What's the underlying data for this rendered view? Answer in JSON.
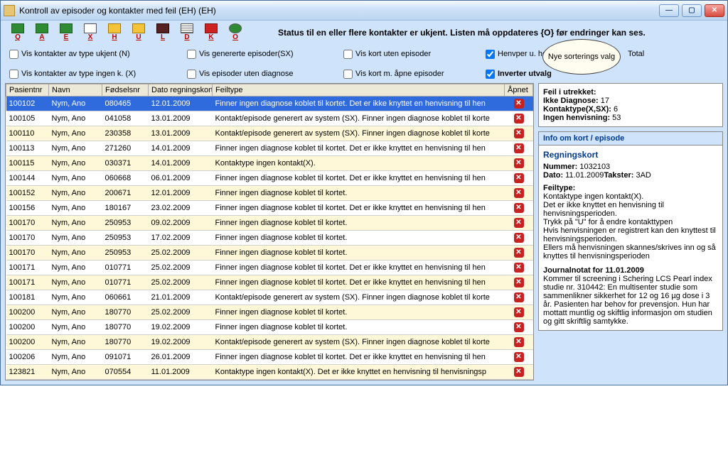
{
  "window": {
    "title": "Kontroll av episoder og kontakter med feil (EH) (EH)"
  },
  "toolbar": {
    "buttons": [
      {
        "icon": "green",
        "letter": "Q",
        "name": "exit"
      },
      {
        "icon": "green",
        "letter": "A",
        "name": "a"
      },
      {
        "icon": "green",
        "letter": "E",
        "name": "e"
      },
      {
        "icon": "",
        "letter": "X",
        "name": "x"
      },
      {
        "icon": "yellow",
        "letter": "H",
        "name": "h"
      },
      {
        "icon": "yellow",
        "letter": "U",
        "name": "u"
      },
      {
        "icon": "dark",
        "letter": "L",
        "name": "l"
      },
      {
        "icon": "list",
        "letter": "D",
        "name": "d"
      },
      {
        "icon": "red",
        "letter": "K",
        "name": "k"
      },
      {
        "icon": "arrow",
        "letter": "O",
        "name": "o"
      }
    ],
    "status": "Status til en eller flere kontakter er ukjent.  Listen må oppdateres  {O}  før endringer kan ses."
  },
  "filters": {
    "row1": [
      {
        "label": "Vis kontakter av type ukjent (N)",
        "checked": false
      },
      {
        "label": "Vis  genererte  episoder(SX)",
        "checked": false
      },
      {
        "label": "Vis kort uten episoder",
        "checked": false,
        "underline": true
      },
      {
        "label": "Henvper u.   henvisning",
        "checked": true
      }
    ],
    "row2": [
      {
        "label": "Vis kontakter av type ingen k. (X)",
        "checked": false
      },
      {
        "label": "Vis episoder uten diagnose",
        "checked": false
      },
      {
        "label": "Vis kort m. åpne episoder",
        "checked": false,
        "underline": true
      },
      {
        "label": "Inverter utvalg",
        "checked": true,
        "bold": true
      }
    ],
    "total_label": "Total",
    "balloon": "Nye sorterings valg"
  },
  "table": {
    "columns": [
      "Pasientnr",
      "Navn",
      "Fødselsnr",
      "Dato regningskort",
      "Feiltype",
      "Åpnet"
    ],
    "colwidths": [
      "60px",
      "75px",
      "65px",
      "90px",
      "auto",
      "40px"
    ],
    "rows": [
      {
        "p": "100102",
        "n": "Nym, Ano",
        "f": "080465",
        "d": "12.01.2009",
        "t": "Finner ingen diagnose koblet til kortet. Det er ikke knyttet en henvisning til hen",
        "sel": true
      },
      {
        "p": "100105",
        "n": "Nym, Ano",
        "f": "041058",
        "d": "13.01.2009",
        "t": "Kontakt/episode generert av system (SX). Finner ingen diagnose koblet til korte"
      },
      {
        "p": "100110",
        "n": "Nym, Ano",
        "f": "230358",
        "d": "13.01.2009",
        "t": "Kontakt/episode generert av system (SX). Finner ingen diagnose koblet til korte"
      },
      {
        "p": "100113",
        "n": "Nym, Ano",
        "f": "271260",
        "d": "14.01.2009",
        "t": "Finner ingen diagnose koblet til kortet. Det er ikke knyttet en henvisning til hen"
      },
      {
        "p": "100115",
        "n": "Nym, Ano",
        "f": "030371",
        "d": "14.01.2009",
        "t": "Kontaktype ingen kontakt(X)."
      },
      {
        "p": "100144",
        "n": "Nym, Ano",
        "f": "060668",
        "d": "06.01.2009",
        "t": "Finner ingen diagnose koblet til kortet. Det er ikke knyttet en henvisning til hen"
      },
      {
        "p": "100152",
        "n": "Nym, Ano",
        "f": "200671",
        "d": "12.01.2009",
        "t": "Finner ingen diagnose koblet til kortet."
      },
      {
        "p": "100156",
        "n": "Nym, Ano",
        "f": "180167",
        "d": "23.02.2009",
        "t": "Finner ingen diagnose koblet til kortet. Det er ikke knyttet en henvisning til hen"
      },
      {
        "p": "100170",
        "n": "Nym, Ano",
        "f": "250953",
        "d": "09.02.2009",
        "t": "Finner ingen diagnose koblet til kortet."
      },
      {
        "p": "100170",
        "n": "Nym, Ano",
        "f": "250953",
        "d": "17.02.2009",
        "t": "Finner ingen diagnose koblet til kortet."
      },
      {
        "p": "100170",
        "n": "Nym, Ano",
        "f": "250953",
        "d": "25.02.2009",
        "t": "Finner ingen diagnose koblet til kortet."
      },
      {
        "p": "100171",
        "n": "Nym, Ano",
        "f": "010771",
        "d": "25.02.2009",
        "t": "Finner ingen diagnose koblet til kortet. Det er ikke knyttet en henvisning til hen"
      },
      {
        "p": "100171",
        "n": "Nym, Ano",
        "f": "010771",
        "d": "25.02.2009",
        "t": "Finner ingen diagnose koblet til kortet. Det er ikke knyttet en henvisning til hen"
      },
      {
        "p": "100181",
        "n": "Nym, Ano",
        "f": "060661",
        "d": "21.01.2009",
        "t": "Kontakt/episode generert av system (SX). Finner ingen diagnose koblet til korte"
      },
      {
        "p": "100200",
        "n": "Nym, Ano",
        "f": "180770",
        "d": "25.02.2009",
        "t": "Finner ingen diagnose koblet til kortet."
      },
      {
        "p": "100200",
        "n": "Nym, Ano",
        "f": "180770",
        "d": "19.02.2009",
        "t": "Finner ingen diagnose koblet til kortet."
      },
      {
        "p": "100200",
        "n": "Nym, Ano",
        "f": "180770",
        "d": "19.02.2009",
        "t": "Kontakt/episode generert av system (SX). Finner ingen diagnose koblet til korte"
      },
      {
        "p": "100206",
        "n": "Nym, Ano",
        "f": "091071",
        "d": "26.01.2009",
        "t": "Finner ingen diagnose koblet til kortet. Det er ikke knyttet en henvisning til hen"
      },
      {
        "p": "123821",
        "n": "Nym, Ano",
        "f": "070554",
        "d": "11.01.2009",
        "t": "Kontaktype ingen kontakt(X). Det er ikke knyttet en henvisning til henvisningsp"
      }
    ]
  },
  "side": {
    "feil": {
      "title": "Feil i utrekket:",
      "lines": [
        {
          "label": "Ikke Diagnose:",
          "val": "17"
        },
        {
          "label": "Kontaktype(X,SX):",
          "val": "6"
        },
        {
          "label": "Ingen henvisning:",
          "val": "53"
        }
      ]
    },
    "info_title": "Info om kort / episode",
    "card": {
      "h": "Regningskort",
      "num_label": "Nummer:",
      "num": "1032103",
      "dato_label": "Dato:",
      "dato": "11.01.2009",
      "takst_label": "Takster:",
      "takst": "3AD",
      "feiltype_h": "Feiltype:",
      "feiltype_lines": [
        "Kontaktype ingen kontakt(X).",
        "Det er ikke knyttet en henvisning til henvisningsperioden.",
        "Trykk på \"U\" for å endre kontakttypen",
        "Hvis henvisningen er registrert kan den knyttest til henvisningsperioden.",
        "Ellers må henvisningen skannes/skrives inn og så knyttes til henvisningsperioden"
      ],
      "journal_h": "Journalnotat for 11.01.2009",
      "journal": "Kommer til screening i Schering LCS Pearl index studie nr. 310442: En multisenter studie som sammenlikner sikkerhet for 12 og 16 µg  dose i 3 år. Pasienten har behov for prevensjon. Hun har mottatt muntlig og skiftlig informasjon om studien og gitt skriftlig samtykke."
    }
  }
}
